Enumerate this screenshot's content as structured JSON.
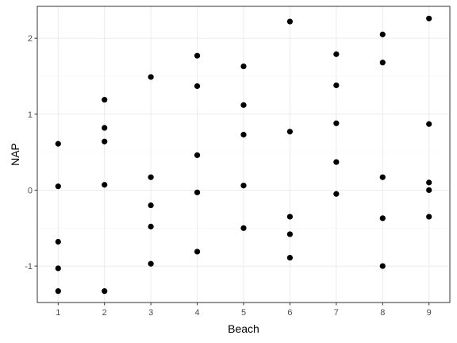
{
  "chart_data": {
    "type": "scatter",
    "xlabel": "Beach",
    "ylabel": "NAP",
    "xlim": [
      0.55,
      9.45
    ],
    "ylim": [
      -1.48,
      2.42
    ],
    "x_ticks": [
      1,
      2,
      3,
      4,
      5,
      6,
      7,
      8,
      9
    ],
    "y_ticks": [
      -1,
      0,
      1,
      2
    ],
    "y_tick_labels": [
      "-1",
      "0",
      "1",
      "2"
    ],
    "grid": true,
    "colors": {
      "point": "#000000",
      "grid_major": "#ebebeb",
      "grid_minor": "#f5f5f5",
      "panel_border": "#333333"
    },
    "points": [
      {
        "x": 1,
        "y": 0.61
      },
      {
        "x": 1,
        "y": 0.05
      },
      {
        "x": 1,
        "y": -0.68
      },
      {
        "x": 1,
        "y": -1.03
      },
      {
        "x": 1,
        "y": -1.33
      },
      {
        "x": 2,
        "y": 1.19
      },
      {
        "x": 2,
        "y": 0.82
      },
      {
        "x": 2,
        "y": 0.64
      },
      {
        "x": 2,
        "y": 0.07
      },
      {
        "x": 2,
        "y": -1.33
      },
      {
        "x": 3,
        "y": 1.49
      },
      {
        "x": 3,
        "y": 0.17
      },
      {
        "x": 3,
        "y": -0.2
      },
      {
        "x": 3,
        "y": -0.48
      },
      {
        "x": 3,
        "y": -0.97
      },
      {
        "x": 4,
        "y": 1.77
      },
      {
        "x": 4,
        "y": 1.37
      },
      {
        "x": 4,
        "y": 0.46
      },
      {
        "x": 4,
        "y": -0.03
      },
      {
        "x": 4,
        "y": -0.81
      },
      {
        "x": 5,
        "y": 1.63
      },
      {
        "x": 5,
        "y": 1.12
      },
      {
        "x": 5,
        "y": 0.73
      },
      {
        "x": 5,
        "y": 0.06
      },
      {
        "x": 5,
        "y": -0.5
      },
      {
        "x": 6,
        "y": 2.22
      },
      {
        "x": 6,
        "y": 0.77
      },
      {
        "x": 6,
        "y": -0.35
      },
      {
        "x": 6,
        "y": -0.58
      },
      {
        "x": 6,
        "y": -0.89
      },
      {
        "x": 7,
        "y": 1.79
      },
      {
        "x": 7,
        "y": 1.38
      },
      {
        "x": 7,
        "y": 0.88
      },
      {
        "x": 7,
        "y": 0.37
      },
      {
        "x": 7,
        "y": -0.05
      },
      {
        "x": 8,
        "y": 2.05
      },
      {
        "x": 8,
        "y": 1.68
      },
      {
        "x": 8,
        "y": 0.17
      },
      {
        "x": 8,
        "y": -0.37
      },
      {
        "x": 8,
        "y": -1.0
      },
      {
        "x": 9,
        "y": 2.26
      },
      {
        "x": 9,
        "y": 0.87
      },
      {
        "x": 9,
        "y": 0.1
      },
      {
        "x": 9,
        "y": 0.0
      },
      {
        "x": 9,
        "y": -0.35
      }
    ]
  }
}
